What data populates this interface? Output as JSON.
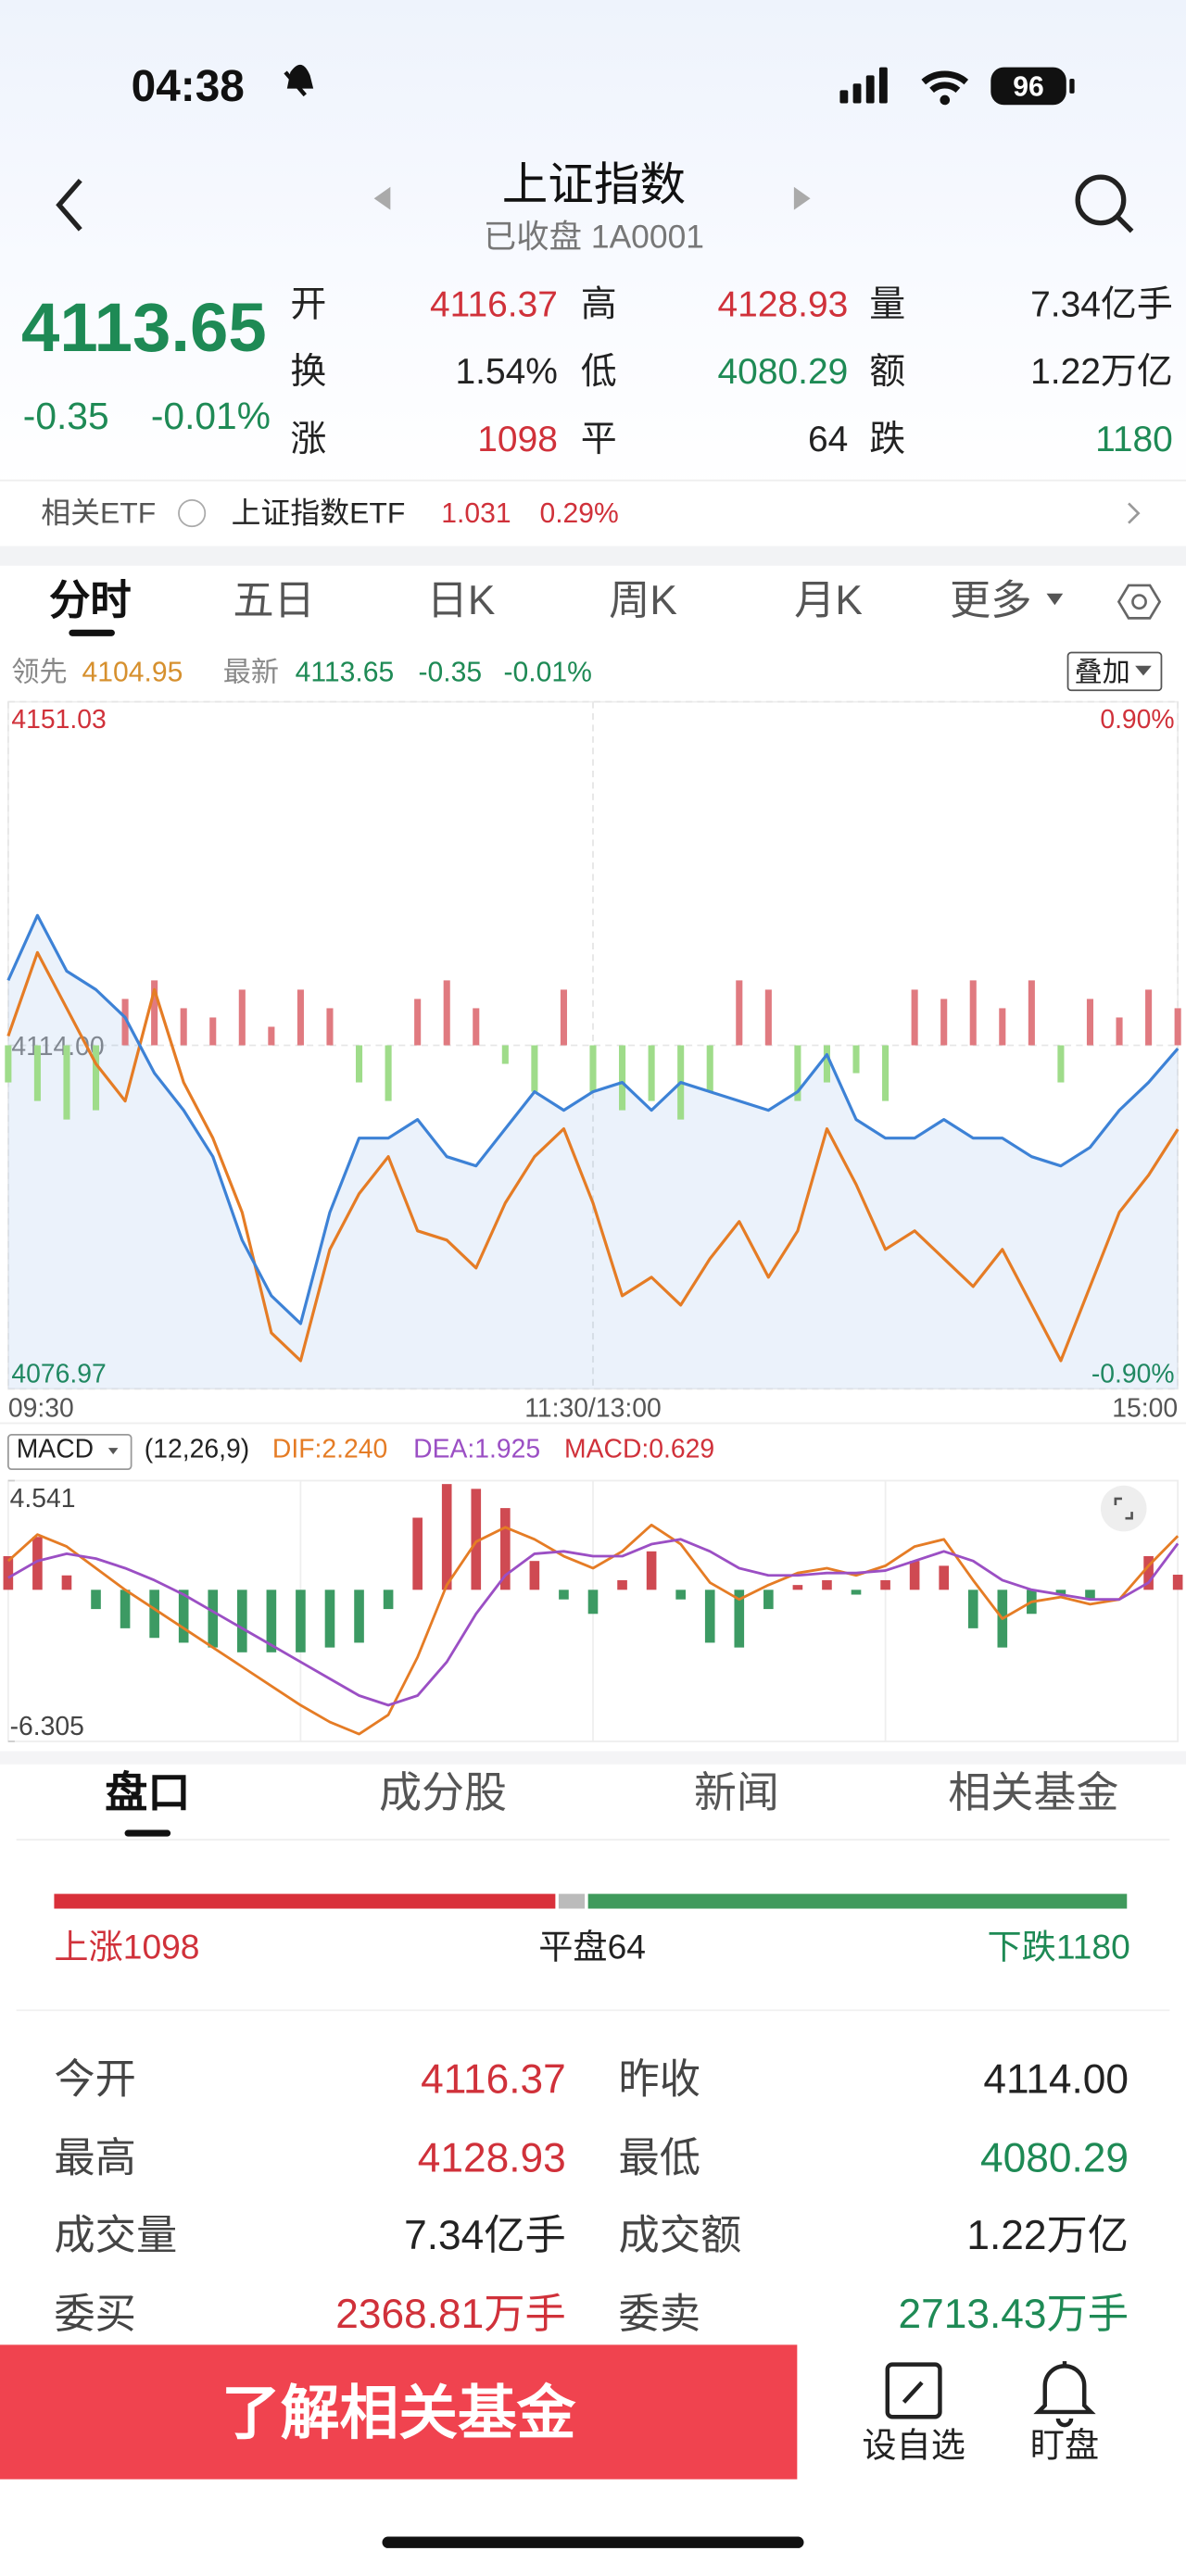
{
  "status_bar": {
    "time": "04:38",
    "battery": "96"
  },
  "header": {
    "title": "上证指数",
    "subtitle": "已收盘 1A0001"
  },
  "quote": {
    "price": "4113.65",
    "change": "-0.35",
    "change_pct": "-0.01%",
    "rows": [
      [
        "开",
        "4116.37",
        "高",
        "4128.93",
        "量",
        "7.34亿手"
      ],
      [
        "换",
        "1.54%",
        "低",
        "4080.29",
        "额",
        "1.22万亿"
      ],
      [
        "涨",
        "1098",
        "平",
        "64",
        "跌",
        "1180"
      ]
    ]
  },
  "etf": {
    "label": "相关ETF",
    "name": "上证指数ETF",
    "price": "1.031",
    "change": "0.29%"
  },
  "chart_tabs": [
    "分时",
    "五日",
    "日K",
    "周K",
    "月K",
    "更多"
  ],
  "overlay_button": "叠加",
  "chart_data": [
    {
      "type": "line",
      "x": [
        0,
        6,
        12,
        18,
        24,
        30,
        36,
        42,
        48,
        54,
        60,
        66,
        72,
        78,
        84,
        90,
        96,
        102,
        108,
        114,
        120,
        126,
        132,
        138,
        144,
        150,
        156,
        162,
        168,
        174,
        180,
        186,
        192,
        198,
        204,
        210,
        216,
        222,
        228,
        234,
        240
      ],
      "xlim": [
        0,
        240
      ],
      "xticks": [
        {
          "value": 0,
          "label": "09:30"
        },
        {
          "value": 120,
          "label": "11:30/13:00"
        },
        {
          "value": 240,
          "label": "15:00"
        }
      ],
      "ylim": [
        4076.97,
        4151.03
      ],
      "yticks": [
        4151.03,
        {
          "value": 4114,
          "label": "4114.00"
        },
        4076.97
      ],
      "y2lim": [
        -0.9,
        0.9
      ],
      "y2ticks": [
        {
          "value": 0.9,
          "label": "0.90%"
        },
        {
          "value": -0.9,
          "label": "-0.90%"
        }
      ],
      "series": [
        {
          "name": "领先",
          "color": "#e57c25",
          "values": [
            4115,
            4124,
            4118,
            4112,
            4108,
            4120,
            4110,
            4104,
            4096,
            4083,
            4080,
            4092,
            4098,
            4102,
            4094,
            4093,
            4090,
            4097,
            4102,
            4105,
            4097,
            4087,
            4089,
            4086,
            4091,
            4095,
            4089,
            4094,
            4105,
            4099,
            4092,
            4094,
            4091,
            4088,
            4092,
            4086,
            4080,
            4088,
            4096,
            4100,
            4104.95
          ]
        },
        {
          "name": "最新",
          "color": "#3d82d6",
          "values": [
            4121,
            4128,
            4122,
            4120,
            4117,
            4111,
            4107,
            4102,
            4093,
            4087,
            4084,
            4096,
            4104,
            4104,
            4106,
            4102,
            4101,
            4105,
            4109,
            4107,
            4109,
            4110,
            4107,
            4110,
            4109,
            4108,
            4107,
            4109,
            4113,
            4106,
            4104,
            4104,
            4106,
            4104,
            4104,
            4102,
            4101,
            4103,
            4107,
            4110,
            4113.65
          ]
        }
      ],
      "bars": [
        4110,
        4108,
        4106,
        4107,
        4119,
        4121,
        4118,
        4117,
        4120,
        4116,
        4120,
        4118,
        4110,
        4108,
        4119,
        4121,
        4118,
        4112,
        4109,
        4120,
        4109,
        4107,
        4108,
        4106,
        4109,
        4121,
        4120,
        4108,
        4110,
        4111,
        4108,
        4120,
        4119,
        4121,
        4118,
        4121,
        4110,
        4119,
        4117,
        4120,
        4118
      ]
    },
    {
      "type": "line",
      "selector": "MACD",
      "params": "(12,26,9)",
      "legend": [
        "DIF:2.240",
        "DEA:1.925",
        "MACD:0.629"
      ],
      "x": [
        0,
        6,
        12,
        18,
        24,
        30,
        36,
        42,
        48,
        54,
        60,
        66,
        72,
        78,
        84,
        90,
        96,
        102,
        108,
        114,
        120,
        126,
        132,
        138,
        144,
        150,
        156,
        162,
        168,
        174,
        180,
        186,
        192,
        198,
        204,
        210,
        216,
        222,
        228,
        234,
        240
      ],
      "xlim": [
        0,
        240
      ],
      "ylim": [
        -6.305,
        4.541
      ],
      "yticks": [
        4.541,
        -6.305
      ],
      "series": [
        {
          "color": "#e57c25",
          "values": [
            1.2,
            2.3,
            1.8,
            0.9,
            0.0,
            -0.8,
            -1.6,
            -2.4,
            -3.2,
            -4.0,
            -4.8,
            -5.5,
            -6.0,
            -5.2,
            -2.8,
            0.2,
            2.0,
            2.6,
            2.1,
            1.4,
            0.9,
            1.6,
            2.7,
            1.9,
            0.3,
            -0.4,
            0.2,
            0.7,
            0.9,
            0.6,
            1.0,
            1.8,
            2.1,
            0.4,
            -1.2,
            -0.5,
            -0.3,
            -0.6,
            -0.4,
            1.0,
            2.24
          ]
        },
        {
          "color": "#9b4fc4",
          "values": [
            0.5,
            1.2,
            1.5,
            1.3,
            0.9,
            0.4,
            -0.2,
            -0.9,
            -1.6,
            -2.3,
            -3.0,
            -3.7,
            -4.4,
            -4.8,
            -4.4,
            -3.0,
            -1.0,
            0.6,
            1.5,
            1.6,
            1.4,
            1.4,
            1.9,
            2.1,
            1.6,
            0.9,
            0.6,
            0.6,
            0.7,
            0.7,
            0.8,
            1.2,
            1.6,
            1.2,
            0.4,
            0.0,
            -0.2,
            -0.4,
            -0.4,
            0.3,
            1.925
          ]
        }
      ],
      "histogram": [
        1.4,
        2.2,
        0.6,
        -0.8,
        -1.6,
        -2.0,
        -2.2,
        -2.4,
        -2.6,
        -2.6,
        -2.6,
        -2.4,
        -2.2,
        -0.8,
        3.0,
        4.4,
        4.2,
        3.4,
        1.2,
        -0.4,
        -1.0,
        0.4,
        1.6,
        -0.4,
        -2.2,
        -2.4,
        -0.8,
        0.2,
        0.4,
        -0.2,
        0.4,
        1.2,
        1.0,
        -1.6,
        -2.4,
        -1.0,
        -0.2,
        -0.4,
        0.0,
        1.4,
        0.629
      ]
    }
  ],
  "panel_tabs": [
    "盘口",
    "成分股",
    "新闻",
    "相关基金"
  ],
  "breadth": {
    "up": {
      "label": "上涨",
      "value": 1098
    },
    "flat": {
      "label": "平盘",
      "value": 64
    },
    "down": {
      "label": "下跌",
      "value": 1180
    }
  },
  "stats": [
    [
      "今开",
      "4116.37",
      "昨收",
      "4114.00"
    ],
    [
      "最高",
      "4128.93",
      "最低",
      "4080.29"
    ],
    [
      "成交量",
      "7.34亿手",
      "成交额",
      "1.22万亿"
    ],
    [
      "委买",
      "2368.81万手",
      "委卖",
      "2713.43万手"
    ]
  ],
  "bottom_bar": {
    "cta": "了解相关基金",
    "actions": [
      "设自选",
      "盯盘"
    ]
  }
}
